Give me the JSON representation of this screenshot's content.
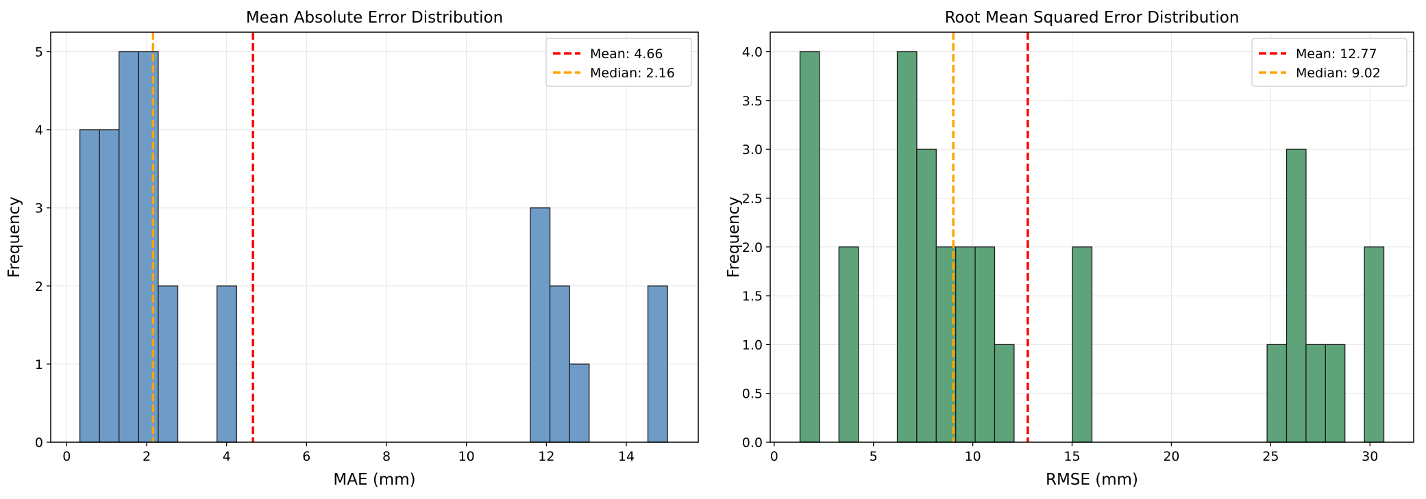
{
  "chart_data": [
    {
      "type": "bar",
      "subtype": "histogram",
      "title": "Mean Absolute Error Distribution",
      "xlabel": "MAE (mm)",
      "ylabel": "Frequency",
      "xlim": [
        -0.4,
        15.8
      ],
      "ylim": [
        0,
        5.25
      ],
      "xticks": [
        0,
        2,
        4,
        6,
        8,
        10,
        12,
        14
      ],
      "yticks": [
        0,
        1,
        2,
        3,
        4,
        5
      ],
      "ytick_labels": [
        "0",
        "1",
        "2",
        "3",
        "4",
        "5"
      ],
      "bar_width": 0.49,
      "bins": [
        {
          "x": 0.33,
          "count": 4
        },
        {
          "x": 0.82,
          "count": 4
        },
        {
          "x": 1.31,
          "count": 5
        },
        {
          "x": 1.8,
          "count": 5
        },
        {
          "x": 2.29,
          "count": 2
        },
        {
          "x": 3.76,
          "count": 2
        },
        {
          "x": 11.6,
          "count": 3
        },
        {
          "x": 12.09,
          "count": 2
        },
        {
          "x": 12.58,
          "count": 1
        },
        {
          "x": 14.54,
          "count": 2
        }
      ],
      "bar_color": "#6f9cc6",
      "mean": 4.66,
      "median": 2.16,
      "legend": {
        "position": "top-right",
        "mean_label": "Mean: 4.66",
        "median_label": "Median: 2.16"
      },
      "grid": true
    },
    {
      "type": "bar",
      "subtype": "histogram",
      "title": "Root Mean Squared Error Distribution",
      "xlabel": "RMSE (mm)",
      "ylabel": "Frequency",
      "xlim": [
        -0.2,
        32.2
      ],
      "ylim": [
        0,
        4.2
      ],
      "xticks": [
        0,
        5,
        10,
        15,
        20,
        25,
        30
      ],
      "yticks": [
        0,
        0.5,
        1,
        1.5,
        2,
        2.5,
        3,
        3.5,
        4
      ],
      "ytick_labels": [
        "0.0",
        "0.5",
        "1.0",
        "1.5",
        "2.0",
        "2.5",
        "3.0",
        "3.5",
        "4.0"
      ],
      "bar_width": 0.98,
      "bins": [
        {
          "x": 1.3,
          "count": 4
        },
        {
          "x": 3.26,
          "count": 2
        },
        {
          "x": 6.2,
          "count": 4
        },
        {
          "x": 7.18,
          "count": 3
        },
        {
          "x": 8.16,
          "count": 2
        },
        {
          "x": 9.14,
          "count": 2
        },
        {
          "x": 10.12,
          "count": 2
        },
        {
          "x": 11.1,
          "count": 1
        },
        {
          "x": 15.02,
          "count": 2
        },
        {
          "x": 24.82,
          "count": 1
        },
        {
          "x": 25.8,
          "count": 3
        },
        {
          "x": 26.78,
          "count": 1
        },
        {
          "x": 27.76,
          "count": 1
        },
        {
          "x": 29.72,
          "count": 2
        }
      ],
      "bar_color": "#5ea37a",
      "mean": 12.77,
      "median": 9.02,
      "legend": {
        "position": "top-right",
        "mean_label": "Mean: 12.77",
        "median_label": "Median: 9.02"
      },
      "grid": true
    }
  ],
  "colors": {
    "mean_line": "#ff0000",
    "median_line": "#ffa500",
    "bar_edge": "#1a1a1a",
    "grid": "#e6e6e6"
  }
}
